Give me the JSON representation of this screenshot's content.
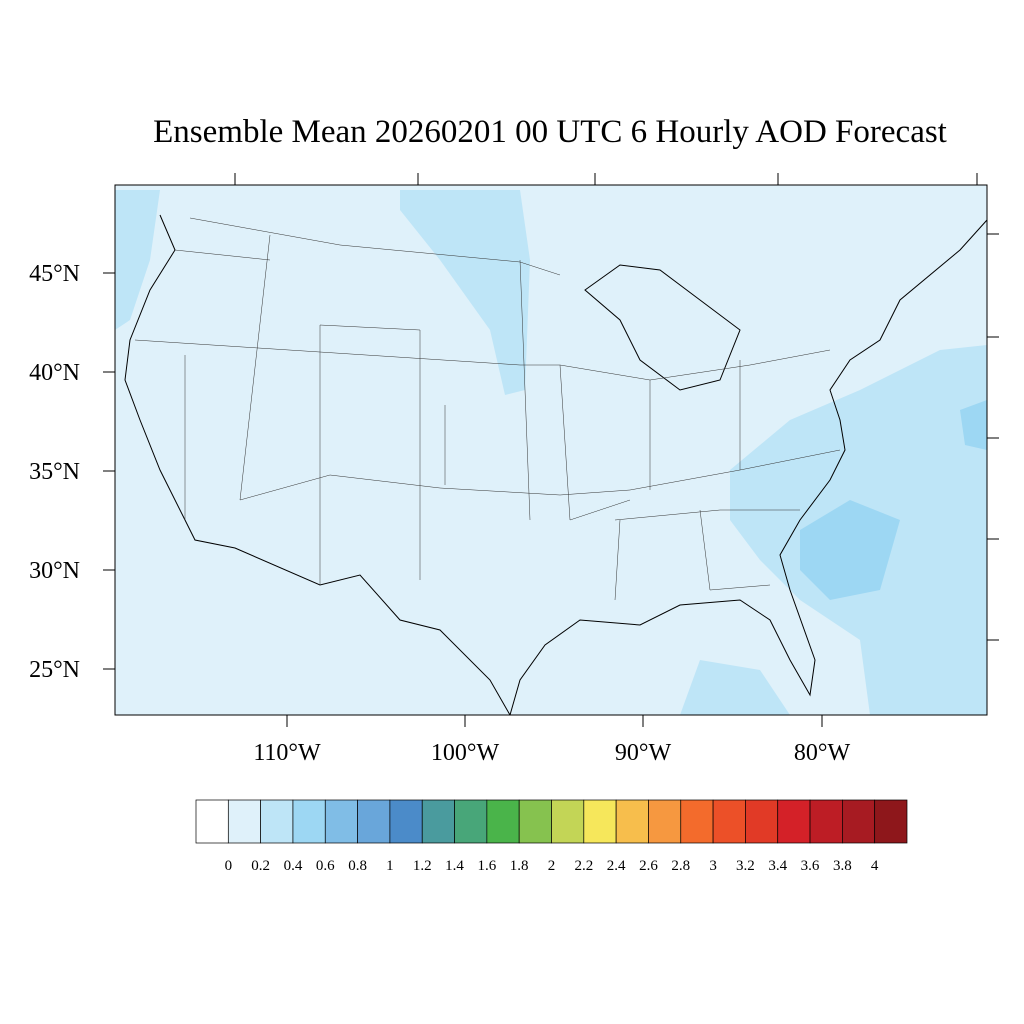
{
  "map": {
    "title": "Ensemble Mean 20260201 00 UTC 6 Hourly AOD Forecast",
    "lat_labels": [
      "45°N",
      "40°N",
      "35°N",
      "30°N",
      "25°N"
    ],
    "lon_labels": [
      "110°W",
      "100°W",
      "90°W",
      "80°W"
    ]
  },
  "colorbar": {
    "colors": [
      "#ffffff",
      "#dff1fa",
      "#bee5f7",
      "#9dd7f3",
      "#80bde6",
      "#69a6da",
      "#4b8bc9",
      "#4a9b9e",
      "#48a679",
      "#4ab44a",
      "#86c24f",
      "#c3d556",
      "#f6e75b",
      "#f7be4c",
      "#f69840",
      "#f36b2c",
      "#ec5028",
      "#e13a26",
      "#d42128",
      "#bd1d25",
      "#a71b22",
      "#8e171b"
    ],
    "labels": [
      "0",
      "0.2",
      "0.4",
      "0.6",
      "0.8",
      "1",
      "1.2",
      "1.4",
      "1.6",
      "1.8",
      "2",
      "2.2",
      "2.4",
      "2.6",
      "2.8",
      "3",
      "3.2",
      "3.4",
      "3.6",
      "3.8",
      "4"
    ]
  }
}
